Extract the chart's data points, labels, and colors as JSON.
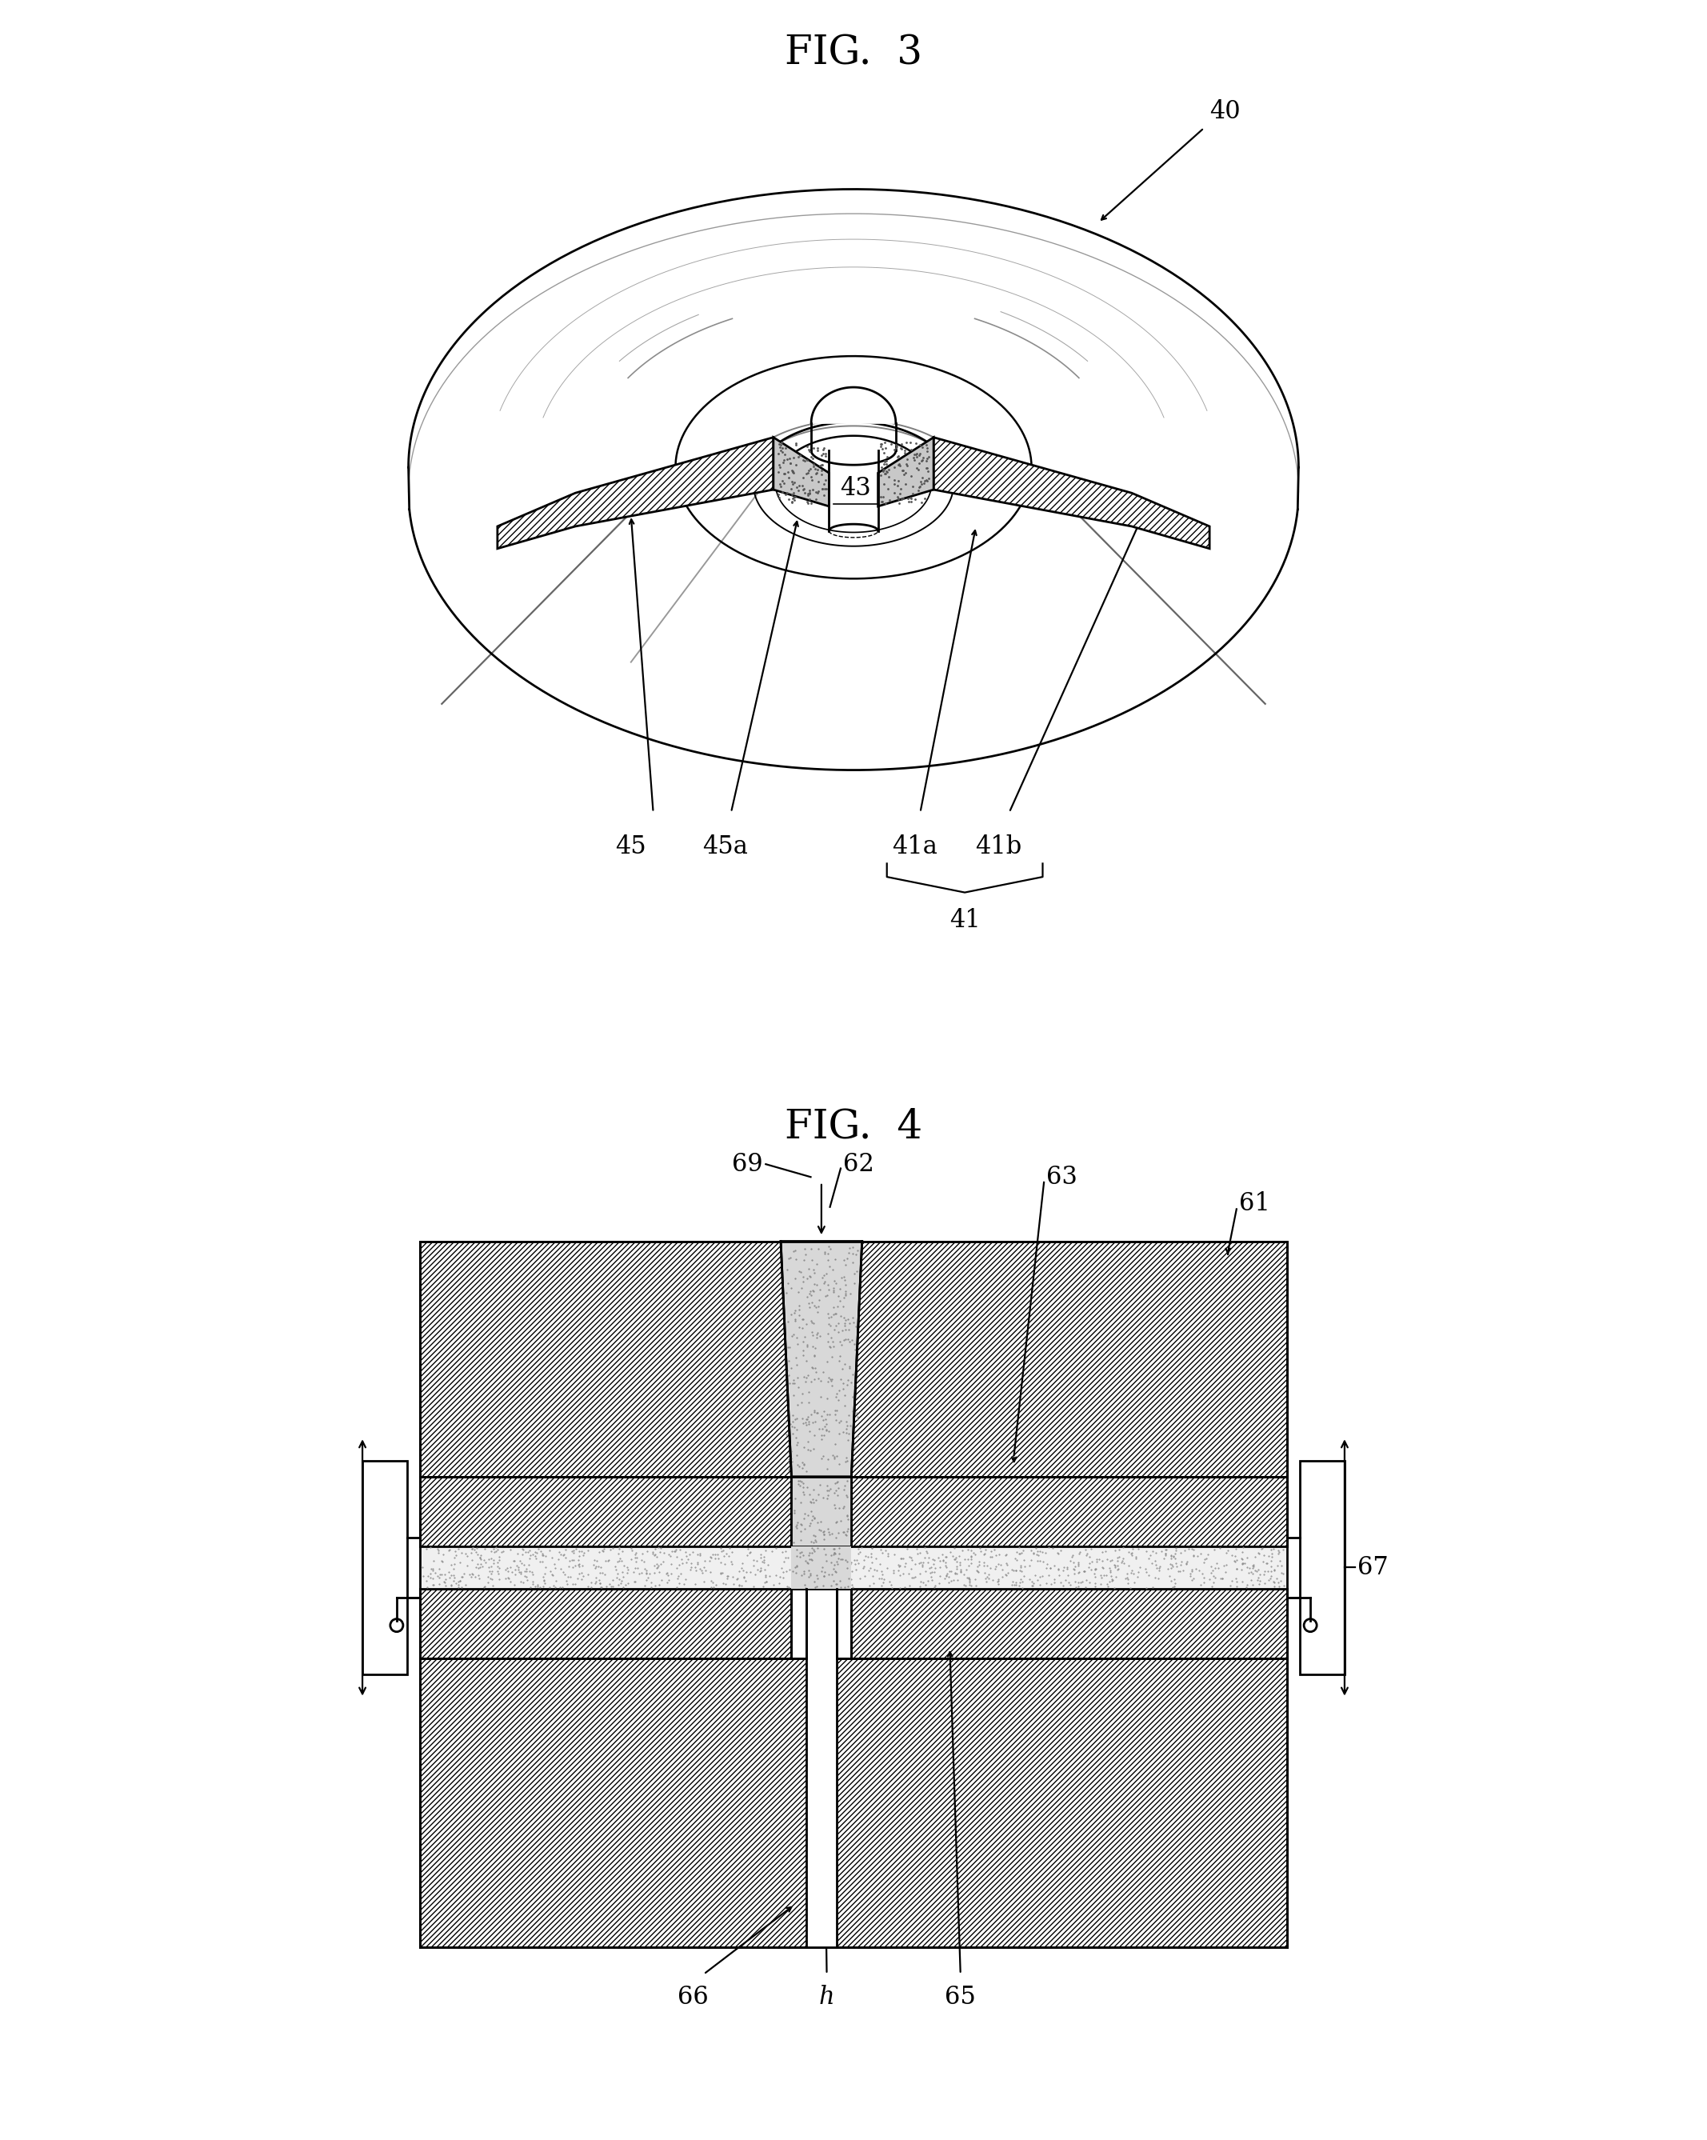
{
  "fig3_title": "FIG.  3",
  "fig4_title": "FIG.  4",
  "bg_color": "#ffffff",
  "label_40": "40",
  "label_41": "41",
  "label_41a": "41a",
  "label_41b": "41b",
  "label_43": "43",
  "label_45": "45",
  "label_45a": "45a",
  "label_61": "61",
  "label_62": "62",
  "label_63": "63",
  "label_65": "65",
  "label_66": "66",
  "label_67": "67",
  "label_69": "69",
  "label_h": "h",
  "title_fontsize": 36,
  "label_fontsize": 22
}
